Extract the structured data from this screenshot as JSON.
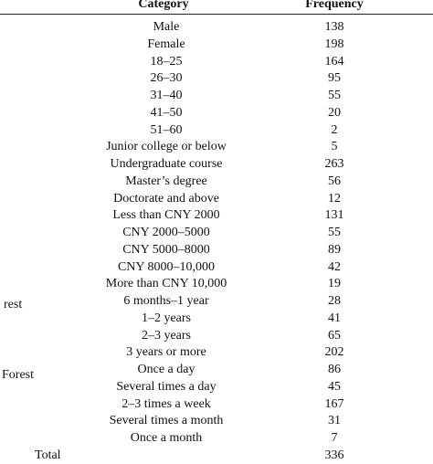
{
  "header": {
    "category": "Category",
    "frequency": "Frequency"
  },
  "side_labels": [
    {
      "text": "rest"
    },
    {
      "text": "Forest"
    }
  ],
  "rows": [
    {
      "category": "Male",
      "frequency": "138"
    },
    {
      "category": "Female",
      "frequency": "198"
    },
    {
      "category": "18–25",
      "frequency": "164"
    },
    {
      "category": "26–30",
      "frequency": "95"
    },
    {
      "category": "31–40",
      "frequency": "55"
    },
    {
      "category": "41–50",
      "frequency": "20"
    },
    {
      "category": "51–60",
      "frequency": "2"
    },
    {
      "category": "Junior college or below",
      "frequency": "5"
    },
    {
      "category": "Undergraduate course",
      "frequency": "263"
    },
    {
      "category": "Master’s degree",
      "frequency": "56"
    },
    {
      "category": "Doctorate and above",
      "frequency": "12"
    },
    {
      "category": "Less than CNY 2000",
      "frequency": "131"
    },
    {
      "category": "CNY 2000–5000",
      "frequency": "55"
    },
    {
      "category": "CNY 5000–8000",
      "frequency": "89"
    },
    {
      "category": "CNY 8000–10,000",
      "frequency": "42"
    },
    {
      "category": "More than CNY 10,000",
      "frequency": "19"
    },
    {
      "category": "6 months–1 year",
      "frequency": "28"
    },
    {
      "category": "1–2 years",
      "frequency": "41"
    },
    {
      "category": "2–3 years",
      "frequency": "65"
    },
    {
      "category": "3 years or more",
      "frequency": "202"
    },
    {
      "category": "Once a day",
      "frequency": "86"
    },
    {
      "category": "Several times a day",
      "frequency": "45"
    },
    {
      "category": "2–3 times a week",
      "frequency": "167"
    },
    {
      "category": "Several times a month",
      "frequency": "31"
    },
    {
      "category": "Once a month",
      "frequency": "7"
    }
  ],
  "total": {
    "label": "Total",
    "frequency": "336"
  }
}
